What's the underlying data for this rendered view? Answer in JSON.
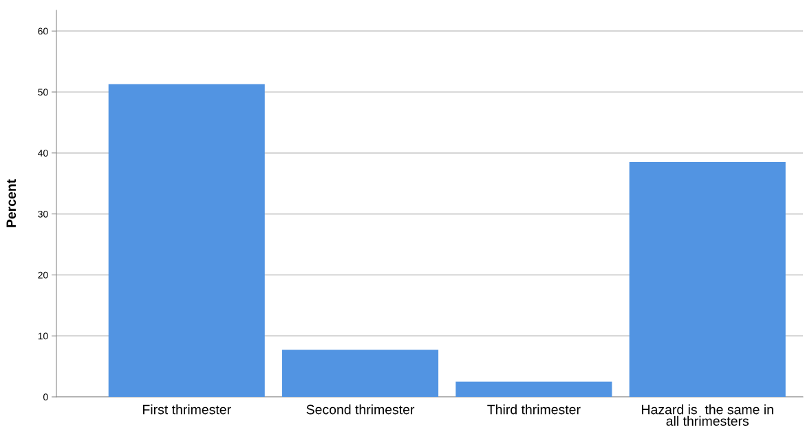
{
  "chart_data": {
    "type": "bar",
    "ylabel": "Percent",
    "categories": [
      "First thrimester",
      "Second thrimester",
      "Third thrimester",
      "Hazard is  the same in\nall thrimesters"
    ],
    "values": [
      51.3,
      7.7,
      2.5,
      38.5
    ],
    "color": "#5294e2",
    "ylim": [
      0,
      63.4
    ],
    "yticks": [
      0,
      10,
      20,
      30,
      40,
      50,
      60
    ],
    "grid": "y"
  }
}
